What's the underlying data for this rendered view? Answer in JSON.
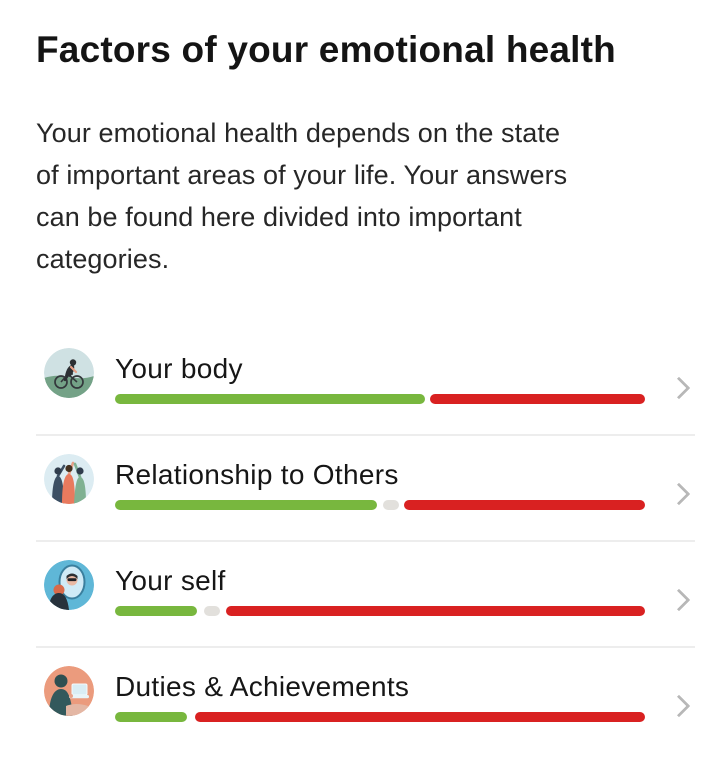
{
  "page": {
    "title": "Factors of your emotional health",
    "intro_lines": [
      "Your emotional health depends on the state",
      "of important areas of your life. Your answers",
      "can be found here divided into important",
      "categories."
    ]
  },
  "colors": {
    "positive": "#78b73e",
    "negative": "#d92121",
    "neutral": "#e2e0dc",
    "divider": "#ededed",
    "chevron": "#b8b8b8"
  },
  "rows": [
    {
      "label": "Your body",
      "icon": "cycling-illustration-icon",
      "segments": [
        {
          "type": "positive",
          "pct": 58.5
        },
        {
          "type": "negative",
          "pct": 40.5
        }
      ]
    },
    {
      "label": "Relationship to Others",
      "icon": "people-high-five-illustration-icon",
      "segments": [
        {
          "type": "positive",
          "pct": 49.5
        },
        {
          "type": "neutral",
          "pct": 3
        },
        {
          "type": "negative",
          "pct": 45.5
        }
      ]
    },
    {
      "label": "Your self",
      "icon": "person-mirror-illustration-icon",
      "segments": [
        {
          "type": "positive",
          "pct": 15.5
        },
        {
          "type": "neutral",
          "pct": 3
        },
        {
          "type": "negative",
          "pct": 79
        }
      ]
    },
    {
      "label": "Duties & Achievements",
      "icon": "person-laptop-illustration-icon",
      "segments": [
        {
          "type": "positive",
          "pct": 13.5
        },
        {
          "type": "negative",
          "pct": 85
        }
      ]
    }
  ]
}
